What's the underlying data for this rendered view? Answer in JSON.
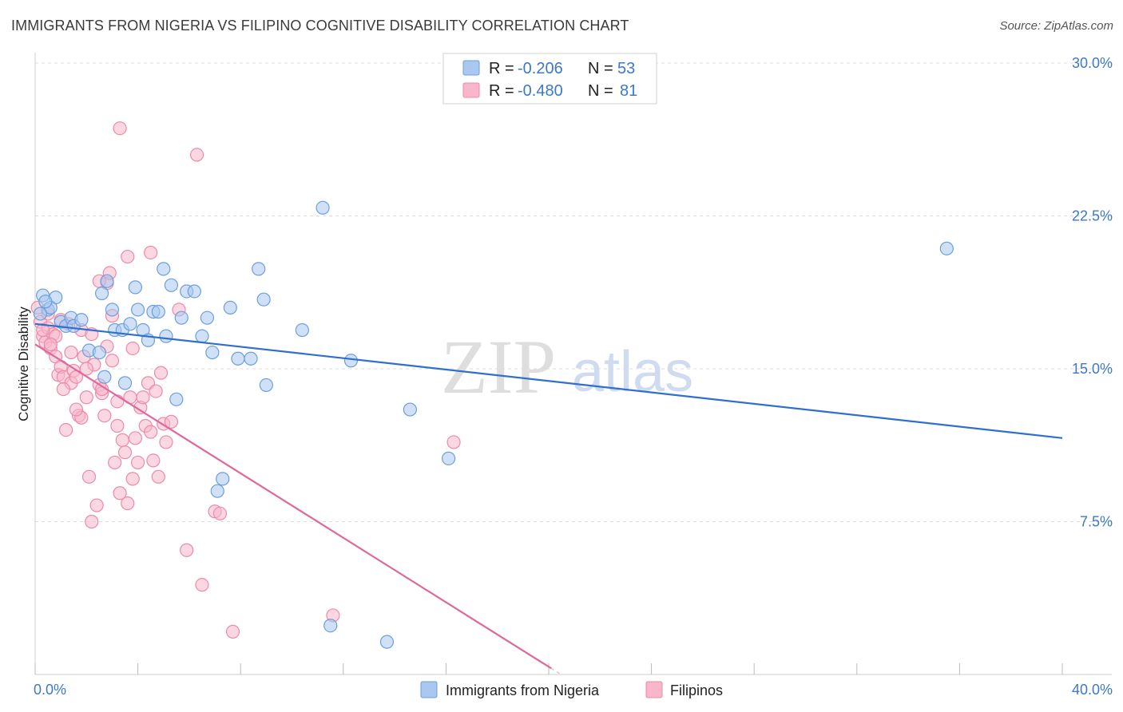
{
  "title": "IMMIGRANTS FROM NIGERIA VS FILIPINO COGNITIVE DISABILITY CORRELATION CHART",
  "source": "Source: ZipAtlas.com",
  "watermark": {
    "zip": "ZIP",
    "atlas": "atlas"
  },
  "colors": {
    "nigeria_fill": "#a9c8f0",
    "nigeria_stroke": "#6b9fdb",
    "nigeria_line": "#2f6fcf",
    "filipino_fill": "#f7b6ca",
    "filipino_stroke": "#ec8aa9",
    "filipino_line": "#e0679a",
    "grid": "#dddddd",
    "accent": "#3d78c9"
  },
  "legend": {
    "rows": [
      {
        "r_label": "R =",
        "r_value": "-0.206",
        "n_label": "N =",
        "n_value": "53"
      },
      {
        "r_label": "R =",
        "r_value": "-0.480",
        "n_label": "N =",
        "n_value": "81"
      }
    ]
  },
  "chart_data": {
    "type": "scatter",
    "xlabel": "",
    "ylabel": "Cognitive Disability",
    "xlim": [
      0,
      40
    ],
    "ylim": [
      0,
      30
    ],
    "x_tick_labels": [
      "0.0%",
      "40.0%"
    ],
    "y_ticks": [
      7.5,
      15.0,
      22.5,
      30.0
    ],
    "y_tick_labels": [
      "7.5%",
      "15.0%",
      "22.5%",
      "30.0%"
    ],
    "grid": true,
    "series": [
      {
        "name": "Immigrants from Nigeria",
        "trend": {
          "x": [
            0,
            40
          ],
          "y": [
            17.2,
            11.6
          ]
        },
        "points": [
          [
            0.3,
            18.6
          ],
          [
            0.5,
            17.9
          ],
          [
            0.8,
            18.5
          ],
          [
            0.6,
            18.0
          ],
          [
            1.0,
            17.3
          ],
          [
            1.2,
            17.1
          ],
          [
            1.4,
            17.5
          ],
          [
            1.5,
            17.1
          ],
          [
            1.8,
            17.4
          ],
          [
            2.1,
            15.9
          ],
          [
            2.5,
            15.8
          ],
          [
            2.8,
            19.3
          ],
          [
            2.6,
            18.7
          ],
          [
            2.7,
            14.6
          ],
          [
            3.0,
            17.9
          ],
          [
            3.1,
            16.9
          ],
          [
            3.4,
            16.9
          ],
          [
            3.5,
            14.3
          ],
          [
            3.7,
            17.2
          ],
          [
            3.9,
            19.0
          ],
          [
            4.0,
            17.9
          ],
          [
            4.2,
            16.9
          ],
          [
            4.4,
            16.4
          ],
          [
            4.6,
            17.8
          ],
          [
            4.8,
            17.8
          ],
          [
            5.0,
            19.9
          ],
          [
            5.1,
            16.6
          ],
          [
            5.3,
            19.1
          ],
          [
            5.5,
            13.5
          ],
          [
            5.7,
            17.5
          ],
          [
            5.9,
            18.8
          ],
          [
            6.2,
            18.8
          ],
          [
            6.5,
            16.6
          ],
          [
            6.7,
            17.5
          ],
          [
            6.9,
            15.8
          ],
          [
            7.1,
            9.0
          ],
          [
            7.3,
            9.6
          ],
          [
            7.6,
            18.0
          ],
          [
            7.9,
            15.5
          ],
          [
            8.4,
            15.5
          ],
          [
            8.7,
            19.9
          ],
          [
            8.9,
            18.4
          ],
          [
            9.0,
            14.2
          ],
          [
            10.4,
            16.9
          ],
          [
            11.2,
            22.9
          ],
          [
            11.5,
            2.4
          ],
          [
            12.3,
            15.4
          ],
          [
            13.7,
            1.6
          ],
          [
            14.6,
            13.0
          ],
          [
            16.1,
            10.6
          ],
          [
            35.5,
            20.9
          ],
          [
            0.4,
            18.3
          ],
          [
            0.2,
            17.7
          ]
        ]
      },
      {
        "name": "Filipinos",
        "trend": {
          "x": [
            0,
            20.1
          ],
          "y": [
            16.2,
            0.3
          ]
        },
        "points": [
          [
            0.1,
            18.0
          ],
          [
            0.2,
            17.3
          ],
          [
            0.3,
            16.6
          ],
          [
            0.4,
            16.3
          ],
          [
            0.5,
            17.0
          ],
          [
            0.6,
            16.0
          ],
          [
            0.7,
            16.7
          ],
          [
            0.8,
            15.6
          ],
          [
            0.9,
            14.7
          ],
          [
            1.0,
            15.1
          ],
          [
            1.1,
            14.6
          ],
          [
            1.2,
            12.0
          ],
          [
            1.3,
            17.2
          ],
          [
            1.4,
            14.3
          ],
          [
            1.5,
            14.9
          ],
          [
            1.6,
            14.6
          ],
          [
            1.7,
            12.7
          ],
          [
            1.8,
            12.6
          ],
          [
            1.9,
            15.6
          ],
          [
            2.0,
            13.6
          ],
          [
            2.1,
            9.7
          ],
          [
            2.2,
            7.5
          ],
          [
            2.3,
            15.2
          ],
          [
            2.4,
            8.3
          ],
          [
            2.5,
            14.2
          ],
          [
            2.6,
            13.8
          ],
          [
            2.7,
            12.7
          ],
          [
            2.8,
            19.2
          ],
          [
            2.9,
            19.7
          ],
          [
            3.0,
            17.6
          ],
          [
            3.1,
            10.4
          ],
          [
            3.2,
            12.2
          ],
          [
            3.3,
            8.9
          ],
          [
            3.4,
            11.5
          ],
          [
            3.5,
            10.9
          ],
          [
            3.6,
            8.4
          ],
          [
            3.7,
            13.6
          ],
          [
            3.8,
            9.6
          ],
          [
            3.9,
            11.6
          ],
          [
            4.0,
            10.4
          ],
          [
            4.1,
            13.1
          ],
          [
            4.2,
            13.6
          ],
          [
            4.3,
            12.2
          ],
          [
            4.4,
            14.3
          ],
          [
            4.5,
            11.9
          ],
          [
            4.6,
            10.5
          ],
          [
            4.7,
            13.9
          ],
          [
            4.8,
            9.7
          ],
          [
            4.9,
            14.8
          ],
          [
            5.0,
            12.3
          ],
          [
            5.1,
            11.4
          ],
          [
            5.3,
            12.4
          ],
          [
            5.6,
            17.9
          ],
          [
            5.9,
            6.1
          ],
          [
            6.3,
            25.5
          ],
          [
            6.5,
            4.4
          ],
          [
            7.0,
            8.0
          ],
          [
            7.2,
            7.9
          ],
          [
            7.7,
            2.1
          ],
          [
            11.6,
            2.9
          ],
          [
            16.3,
            11.4
          ],
          [
            3.3,
            26.8
          ],
          [
            3.6,
            20.5
          ],
          [
            4.5,
            20.7
          ],
          [
            2.5,
            19.3
          ],
          [
            0.5,
            17.7
          ],
          [
            1.0,
            17.4
          ],
          [
            1.8,
            16.9
          ],
          [
            2.2,
            16.7
          ],
          [
            2.8,
            16.1
          ],
          [
            3.0,
            15.4
          ],
          [
            0.8,
            16.6
          ],
          [
            1.4,
            15.8
          ],
          [
            2.0,
            15.0
          ],
          [
            2.6,
            14.0
          ],
          [
            3.2,
            13.4
          ],
          [
            0.3,
            16.9
          ],
          [
            0.6,
            16.2
          ],
          [
            1.1,
            14.0
          ],
          [
            1.6,
            13.0
          ],
          [
            3.8,
            16.0
          ]
        ]
      }
    ]
  }
}
